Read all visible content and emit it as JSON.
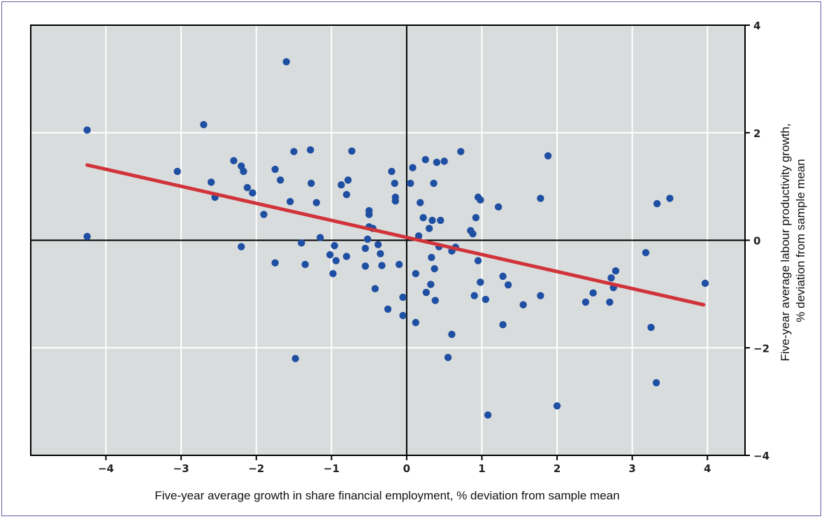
{
  "chart_data": {
    "type": "scatter",
    "title": "",
    "xlabel": "Five-year average growth in share financial employment, % deviation from sample mean",
    "ylabel_lines": [
      "Five-year average labour productivity growth,",
      "% deviation from sample mean"
    ],
    "xlim": [
      -5,
      4.5
    ],
    "ylim": [
      -4,
      4
    ],
    "x_ticks": [
      -4,
      -3,
      -2,
      -1,
      0,
      1,
      2,
      3,
      4
    ],
    "x_tick_labels": [
      "−4",
      "−3",
      "−2",
      "−1",
      "0",
      "1",
      "2",
      "3",
      "4"
    ],
    "y_ticks": [
      -4,
      -2,
      0,
      2,
      4
    ],
    "y_tick_labels": [
      "−4",
      "−2",
      "0",
      "2",
      "4"
    ],
    "grid": true,
    "legend": "none",
    "colors": {
      "points": "#1f4fa3",
      "trend": "#d0343a",
      "plot_bg": "#d9dcdc",
      "grid": "#ffffff",
      "axes": "#000000"
    },
    "trend_line": {
      "x": [
        -4.25,
        3.95
      ],
      "y": [
        1.4,
        -1.2
      ]
    },
    "points": [
      [
        -4.25,
        2.05
      ],
      [
        -4.25,
        0.07
      ],
      [
        -3.05,
        1.28
      ],
      [
        -2.7,
        2.15
      ],
      [
        -2.6,
        1.08
      ],
      [
        -2.55,
        0.8
      ],
      [
        -2.3,
        1.48
      ],
      [
        -2.2,
        1.38
      ],
      [
        -2.17,
        1.28
      ],
      [
        -2.2,
        -0.12
      ],
      [
        -2.12,
        0.98
      ],
      [
        -2.05,
        0.88
      ],
      [
        -1.9,
        0.48
      ],
      [
        -1.75,
        1.32
      ],
      [
        -1.75,
        -0.42
      ],
      [
        -1.68,
        1.12
      ],
      [
        -1.6,
        3.32
      ],
      [
        -1.55,
        0.72
      ],
      [
        -1.5,
        1.65
      ],
      [
        -1.48,
        -2.2
      ],
      [
        -1.4,
        -0.05
      ],
      [
        -1.35,
        -0.45
      ],
      [
        -1.28,
        1.68
      ],
      [
        -1.27,
        1.06
      ],
      [
        -1.2,
        0.7
      ],
      [
        -1.15,
        0.05
      ],
      [
        -1.02,
        -0.27
      ],
      [
        -0.98,
        -0.62
      ],
      [
        -0.96,
        -0.1
      ],
      [
        -0.94,
        -0.38
      ],
      [
        -0.87,
        1.03
      ],
      [
        -0.8,
        0.85
      ],
      [
        -0.78,
        1.12
      ],
      [
        -0.8,
        -0.3
      ],
      [
        -0.73,
        1.66
      ],
      [
        -0.55,
        -0.15
      ],
      [
        -0.55,
        -0.48
      ],
      [
        -0.52,
        0.02
      ],
      [
        -0.5,
        0.55
      ],
      [
        -0.5,
        0.48
      ],
      [
        -0.5,
        0.25
      ],
      [
        -0.45,
        0.22
      ],
      [
        -0.42,
        -0.9
      ],
      [
        -0.38,
        -0.08
      ],
      [
        -0.35,
        -0.25
      ],
      [
        -0.33,
        -0.47
      ],
      [
        -0.25,
        -1.28
      ],
      [
        -0.2,
        1.28
      ],
      [
        -0.16,
        1.06
      ],
      [
        -0.15,
        0.8
      ],
      [
        -0.15,
        0.73
      ],
      [
        -0.1,
        -0.45
      ],
      [
        -0.05,
        -1.06
      ],
      [
        -0.05,
        -1.4
      ],
      [
        0.05,
        1.06
      ],
      [
        0.08,
        1.35
      ],
      [
        0.12,
        -0.62
      ],
      [
        0.12,
        -1.53
      ],
      [
        0.16,
        0.08
      ],
      [
        0.18,
        0.7
      ],
      [
        0.22,
        0.42
      ],
      [
        0.25,
        1.5
      ],
      [
        0.26,
        -0.97
      ],
      [
        0.3,
        0.22
      ],
      [
        0.32,
        -0.82
      ],
      [
        0.33,
        -0.32
      ],
      [
        0.34,
        0.37
      ],
      [
        0.36,
        1.06
      ],
      [
        0.37,
        -0.53
      ],
      [
        0.38,
        -1.12
      ],
      [
        0.4,
        1.45
      ],
      [
        0.43,
        -0.12
      ],
      [
        0.45,
        0.37
      ],
      [
        0.5,
        1.47
      ],
      [
        0.55,
        -2.18
      ],
      [
        0.6,
        -0.2
      ],
      [
        0.6,
        -1.75
      ],
      [
        0.65,
        -0.13
      ],
      [
        0.72,
        1.65
      ],
      [
        0.85,
        0.18
      ],
      [
        0.88,
        0.12
      ],
      [
        0.9,
        -1.03
      ],
      [
        0.92,
        0.42
      ],
      [
        0.95,
        0.8
      ],
      [
        0.95,
        -0.38
      ],
      [
        0.98,
        0.75
      ],
      [
        0.98,
        -0.78
      ],
      [
        1.05,
        -1.1
      ],
      [
        1.08,
        -3.25
      ],
      [
        1.22,
        0.62
      ],
      [
        1.28,
        -0.67
      ],
      [
        1.28,
        -1.57
      ],
      [
        1.35,
        -0.83
      ],
      [
        1.55,
        -1.2
      ],
      [
        1.78,
        0.78
      ],
      [
        1.78,
        -1.03
      ],
      [
        1.88,
        1.57
      ],
      [
        2.0,
        -3.08
      ],
      [
        2.38,
        -1.15
      ],
      [
        2.48,
        -0.98
      ],
      [
        2.7,
        -1.15
      ],
      [
        2.72,
        -0.7
      ],
      [
        2.75,
        -0.88
      ],
      [
        2.78,
        -0.57
      ],
      [
        3.18,
        -0.23
      ],
      [
        3.25,
        -1.62
      ],
      [
        3.32,
        -2.65
      ],
      [
        3.33,
        0.68
      ],
      [
        3.5,
        0.78
      ],
      [
        3.97,
        -0.8
      ]
    ]
  }
}
